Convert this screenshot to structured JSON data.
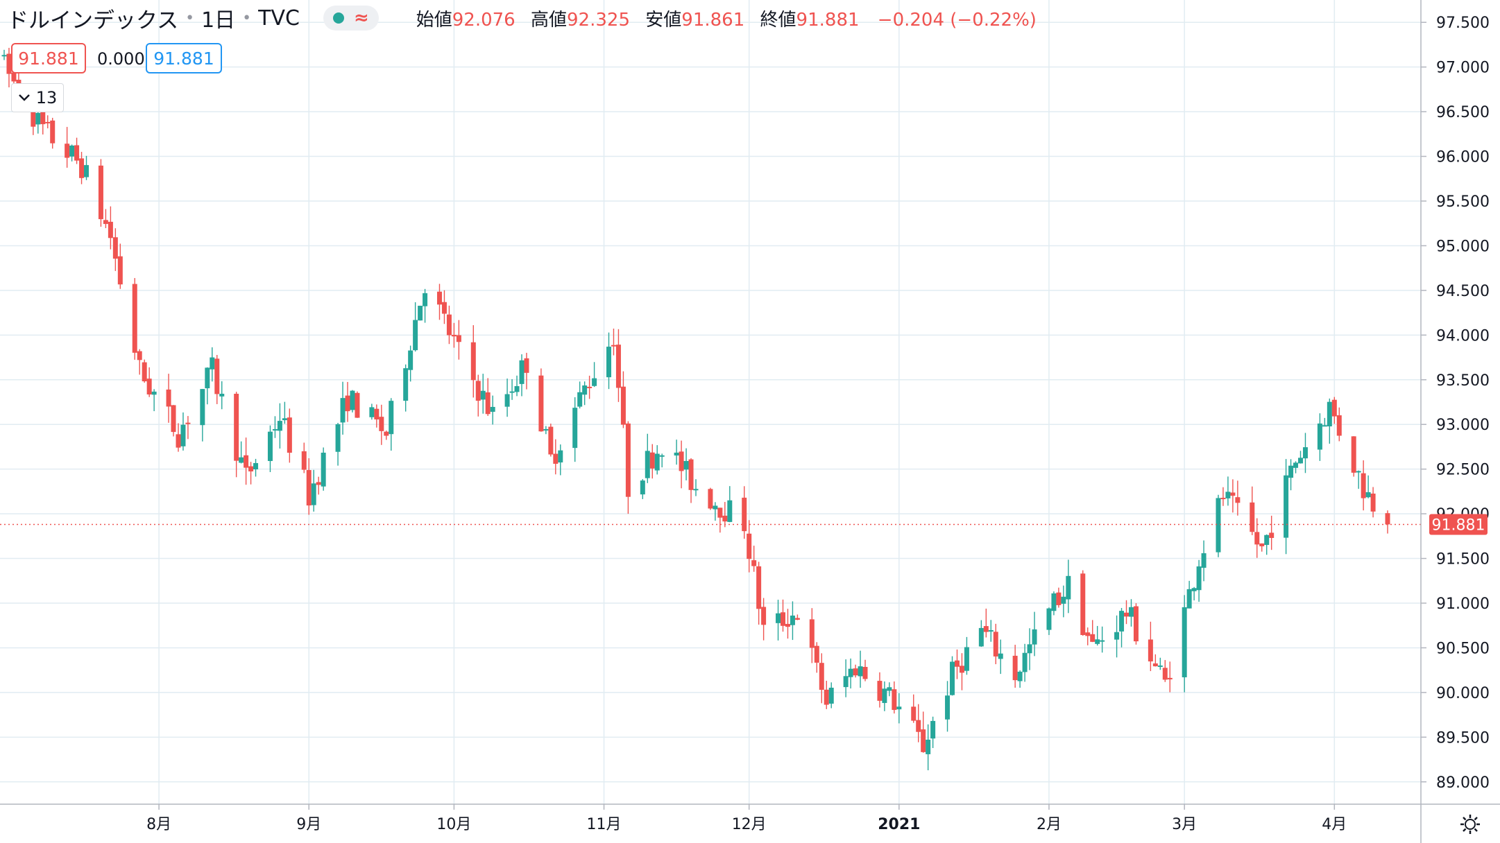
{
  "header": {
    "title": "ドルインデックス",
    "interval": "1日",
    "source": "TVC",
    "open_label": "始値",
    "open": "92.076",
    "high_label": "高値",
    "high": "92.325",
    "low_label": "安値",
    "low": "91.861",
    "close_label": "終値",
    "close": "91.881",
    "change": "−0.204 (−0.22%)"
  },
  "indicator": {
    "value1": "91.881",
    "value2": "0.000",
    "value3": "91.881",
    "collapse_count": "13"
  },
  "icons": {
    "status": "green-dot-icon",
    "compare": "wave-icon",
    "collapse": "chevron-down-icon",
    "settings": "gear-icon"
  },
  "colors": {
    "up": "#26a69a",
    "down": "#ef5350",
    "grid": "#e1ecf2",
    "price_line": "#ef5350",
    "current_price_bg": "#ef5350"
  },
  "chart_data": {
    "type": "candlestick",
    "ylim": [
      88.75,
      97.75
    ],
    "y_ticks": [
      "89.000",
      "89.500",
      "90.000",
      "90.500",
      "91.000",
      "91.500",
      "92.000",
      "92.500",
      "93.000",
      "93.500",
      "94.000",
      "94.500",
      "95.000",
      "95.500",
      "96.000",
      "96.500",
      "97.000",
      "97.500"
    ],
    "x_ticks": [
      {
        "label": "8月",
        "date": "2020-08-01"
      },
      {
        "label": "9月",
        "date": "2020-09-01"
      },
      {
        "label": "10月",
        "date": "2020-10-01"
      },
      {
        "label": "11月",
        "date": "2020-11-01"
      },
      {
        "label": "12月",
        "date": "2020-12-01"
      },
      {
        "label": "2021",
        "date": "2021-01-01"
      },
      {
        "label": "2月",
        "date": "2021-02-01"
      },
      {
        "label": "3月",
        "date": "2021-03-01"
      },
      {
        "label": "4月",
        "date": "2021-04-01"
      }
    ],
    "last_price": "91.881",
    "anchors": [
      {
        "date": "2020-06-30",
        "price": 97.0
      },
      {
        "date": "2020-07-08",
        "price": 96.3
      },
      {
        "date": "2020-07-16",
        "price": 95.9
      },
      {
        "date": "2020-07-22",
        "price": 95.1
      },
      {
        "date": "2020-07-28",
        "price": 93.6
      },
      {
        "date": "2020-08-05",
        "price": 92.9
      },
      {
        "date": "2020-08-12",
        "price": 93.6
      },
      {
        "date": "2020-08-19",
        "price": 92.4
      },
      {
        "date": "2020-08-26",
        "price": 93.1
      },
      {
        "date": "2020-09-01",
        "price": 92.2
      },
      {
        "date": "2020-09-09",
        "price": 93.3
      },
      {
        "date": "2020-09-17",
        "price": 92.9
      },
      {
        "date": "2020-09-25",
        "price": 94.6
      },
      {
        "date": "2020-10-02",
        "price": 93.8
      },
      {
        "date": "2020-10-09",
        "price": 93.1
      },
      {
        "date": "2020-10-16",
        "price": 93.7
      },
      {
        "date": "2020-10-21",
        "price": 92.6
      },
      {
        "date": "2020-10-28",
        "price": 93.4
      },
      {
        "date": "2020-11-03",
        "price": 94.0
      },
      {
        "date": "2020-11-06",
        "price": 92.3
      },
      {
        "date": "2020-11-13",
        "price": 92.8
      },
      {
        "date": "2020-11-20",
        "price": 92.3
      },
      {
        "date": "2020-11-30",
        "price": 91.9
      },
      {
        "date": "2020-12-04",
        "price": 90.7
      },
      {
        "date": "2020-12-11",
        "price": 90.9
      },
      {
        "date": "2020-12-17",
        "price": 89.9
      },
      {
        "date": "2020-12-23",
        "price": 90.3
      },
      {
        "date": "2020-12-31",
        "price": 89.9
      },
      {
        "date": "2021-01-06",
        "price": 89.4
      },
      {
        "date": "2021-01-12",
        "price": 90.2
      },
      {
        "date": "2021-01-18",
        "price": 90.7
      },
      {
        "date": "2021-01-25",
        "price": 90.2
      },
      {
        "date": "2021-02-02",
        "price": 91.0
      },
      {
        "date": "2021-02-05",
        "price": 91.2
      },
      {
        "date": "2021-02-10",
        "price": 90.5
      },
      {
        "date": "2021-02-17",
        "price": 90.9
      },
      {
        "date": "2021-02-25",
        "price": 90.1
      },
      {
        "date": "2021-03-04",
        "price": 91.5
      },
      {
        "date": "2021-03-09",
        "price": 92.2
      },
      {
        "date": "2021-03-17",
        "price": 91.6
      },
      {
        "date": "2021-03-24",
        "price": 92.6
      },
      {
        "date": "2021-03-31",
        "price": 93.2
      },
      {
        "date": "2021-04-07",
        "price": 92.3
      },
      {
        "date": "2021-04-12",
        "price": 91.88
      }
    ]
  }
}
